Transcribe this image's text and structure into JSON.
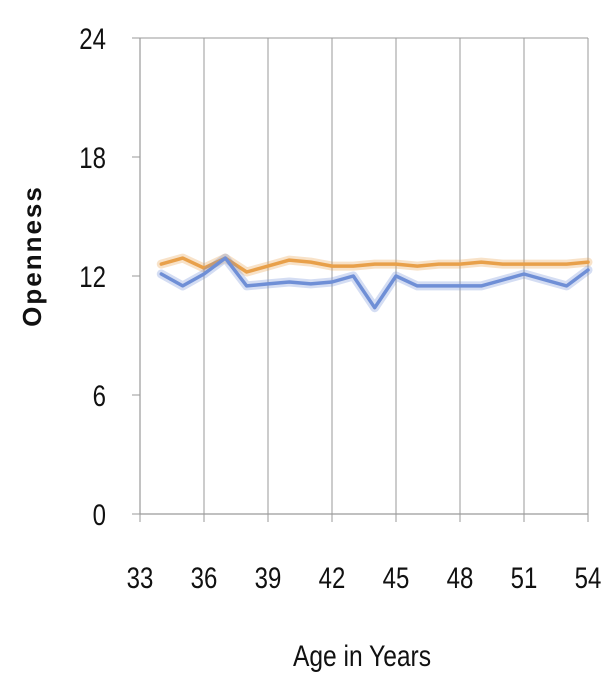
{
  "chart_data": {
    "type": "line",
    "title": "",
    "xlabel": "Age in Years",
    "ylabel": "Openness",
    "xlim": [
      33,
      54
    ],
    "ylim": [
      0,
      24
    ],
    "x_ticks": [
      33,
      36,
      39,
      42,
      45,
      48,
      51,
      54
    ],
    "y_ticks": [
      0,
      6,
      12,
      18,
      24
    ],
    "grid": {
      "vertical": true,
      "horizontal": false
    },
    "legend": null,
    "series": [
      {
        "color": "#E8A04A",
        "x": [
          34,
          35,
          36,
          37,
          38,
          39,
          40,
          41,
          42,
          43,
          44,
          45,
          46,
          47,
          48,
          49,
          50,
          51,
          52,
          53,
          54
        ],
        "values": [
          12.6,
          12.9,
          12.4,
          12.9,
          12.2,
          12.5,
          12.8,
          12.7,
          12.5,
          12.5,
          12.6,
          12.6,
          12.5,
          12.6,
          12.6,
          12.7,
          12.6,
          12.6,
          12.6,
          12.6,
          12.7
        ]
      },
      {
        "color": "#6F8FD6",
        "x": [
          34,
          35,
          36,
          37,
          38,
          39,
          40,
          41,
          42,
          43,
          44,
          45,
          46,
          47,
          48,
          49,
          50,
          51,
          52,
          53,
          54
        ],
        "values": [
          12.1,
          11.5,
          12.1,
          12.9,
          11.5,
          11.6,
          11.7,
          11.6,
          11.7,
          12.0,
          10.4,
          12.0,
          11.5,
          11.5,
          11.5,
          11.5,
          11.8,
          12.1,
          11.8,
          11.5,
          12.3
        ]
      }
    ]
  }
}
